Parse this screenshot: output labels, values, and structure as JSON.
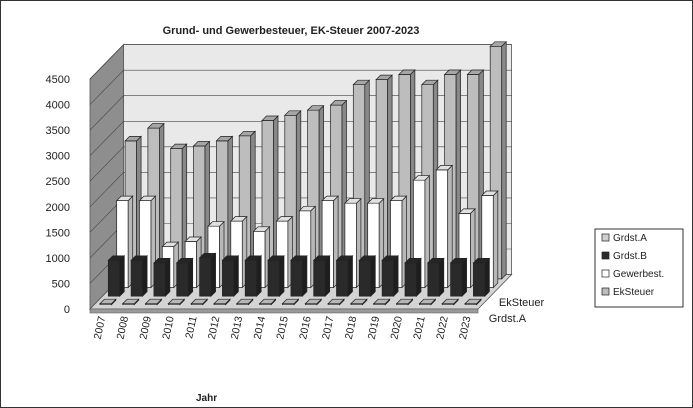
{
  "chart_data": {
    "type": "bar",
    "variant": "3d-clustered-depth",
    "title": "Grund- und Gewerbesteuer, EK-Steuer 2007-2023",
    "xlabel": "Jahr",
    "ylabel": "",
    "ylim": [
      0,
      4500
    ],
    "ytick_step": 500,
    "yticks": [
      "0",
      "500",
      "1000",
      "1500",
      "2000",
      "2500",
      "3000",
      "3500",
      "4000",
      "4500"
    ],
    "grid": true,
    "legend_position": "right",
    "categories": [
      "2007",
      "2008",
      "2009",
      "2010",
      "2011",
      "2012",
      "2013",
      "2014",
      "2015",
      "2016",
      "2017",
      "2018",
      "2019",
      "2020",
      "2021",
      "2022",
      "2023"
    ],
    "depth_labels": [
      "EkSteuer",
      "Grdst.A"
    ],
    "series": [
      {
        "name": "Grdst.A",
        "color": "#cfcfcf",
        "values": [
          20,
          20,
          20,
          20,
          20,
          20,
          20,
          20,
          20,
          20,
          20,
          20,
          20,
          20,
          20,
          20,
          20
        ]
      },
      {
        "name": "Grdst.B",
        "color": "#2a2a2a",
        "values": [
          700,
          700,
          650,
          650,
          750,
          700,
          700,
          700,
          700,
          700,
          700,
          700,
          700,
          650,
          650,
          650,
          650
        ]
      },
      {
        "name": "Gewerbest.",
        "color": "#ffffff",
        "values": [
          1700,
          1700,
          800,
          900,
          1200,
          1300,
          1100,
          1300,
          1500,
          1700,
          1650,
          1650,
          1700,
          2100,
          2300,
          1450,
          1800
        ]
      },
      {
        "name": "EkSteuer",
        "color": "#bdbdbd",
        "values": [
          2700,
          2950,
          2550,
          2600,
          2700,
          2800,
          3100,
          3200,
          3300,
          3400,
          3800,
          3900,
          4000,
          3800,
          4000,
          4000,
          4550
        ]
      }
    ]
  }
}
